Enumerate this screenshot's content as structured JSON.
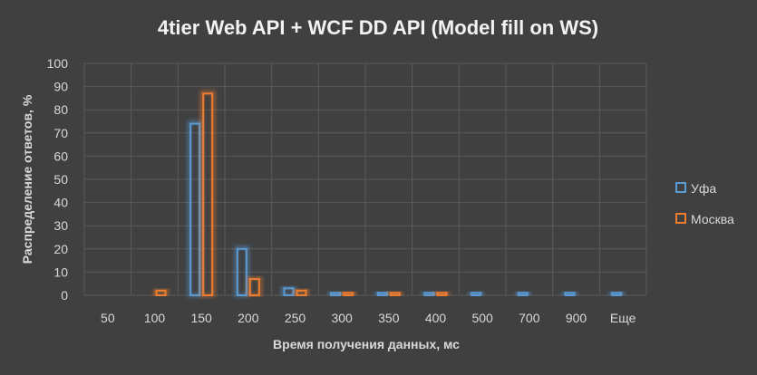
{
  "chart_data": {
    "type": "bar",
    "title": "4tier Web API + WCF DD API (Model fill on WS)",
    "xlabel": "Время получения данных, мс",
    "ylabel": "Распределение ответов, %",
    "categories": [
      "50",
      "100",
      "150",
      "200",
      "250",
      "300",
      "350",
      "400",
      "500",
      "700",
      "900",
      "Еще"
    ],
    "ylim": [
      0,
      100
    ],
    "yticks": [
      0,
      10,
      20,
      30,
      40,
      50,
      60,
      70,
      80,
      90,
      100
    ],
    "grid": true,
    "legend_position": "right",
    "series": [
      {
        "name": "Уфа",
        "color": "#5B9BD5",
        "values": [
          0,
          0,
          74,
          20,
          3,
          1,
          1,
          1,
          1,
          1,
          1,
          1
        ]
      },
      {
        "name": "Москва",
        "color": "#ED7D31",
        "values": [
          0,
          2,
          87,
          7,
          2,
          1,
          1,
          1,
          0,
          0,
          0,
          0
        ]
      }
    ],
    "colors": {
      "background": "#404040",
      "text": "#D9D9D9",
      "title": "#F2F2F2",
      "grid": "#5A5A5A"
    }
  }
}
